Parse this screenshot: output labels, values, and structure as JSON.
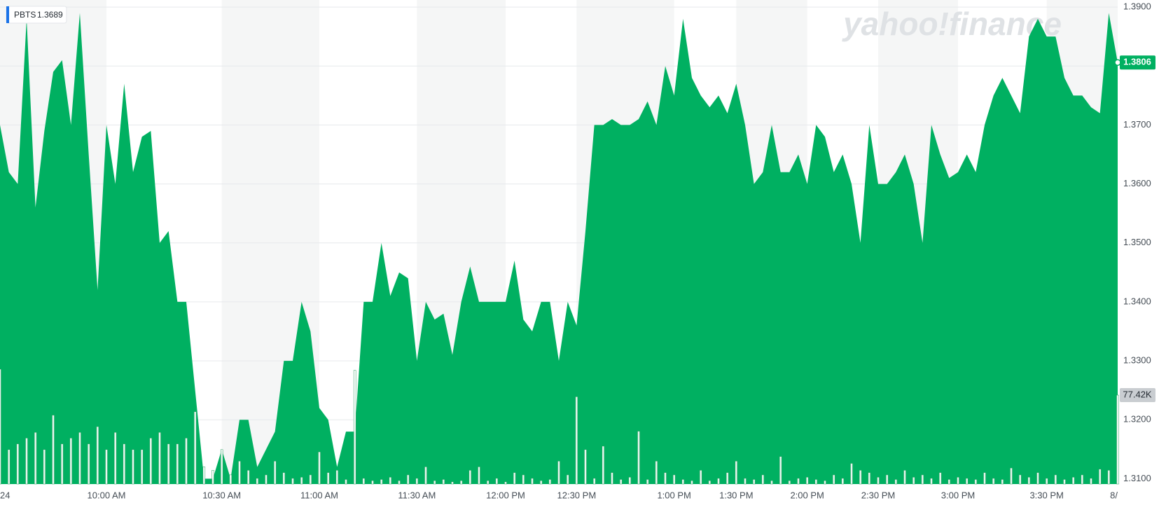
{
  "chart_data": {
    "type": "area",
    "watermark": "yahoo!finance",
    "tooltip": {
      "symbol": "PBTS",
      "value": 1.3689,
      "label": "1.3689"
    },
    "price_tag": {
      "value": 1.3806,
      "label": "1.3806"
    },
    "volume_tag": {
      "value": 77.42,
      "label": "77.42K"
    },
    "color": "#00b061",
    "volume_color": "#ffffff",
    "grid": true,
    "ylim": [
      1.3091,
      1.3912
    ],
    "yticks": [
      {
        "value": 1.31,
        "label": "1.3100"
      },
      {
        "value": 1.32,
        "label": "1.3200"
      },
      {
        "value": 1.33,
        "label": "1.3300"
      },
      {
        "value": 1.34,
        "label": "1.3400"
      },
      {
        "value": 1.35,
        "label": "1.3500"
      },
      {
        "value": 1.36,
        "label": "1.3600"
      },
      {
        "value": 1.37,
        "label": "1.3700"
      },
      {
        "value": 1.38,
        "label": "1.3800"
      },
      {
        "value": 1.39,
        "label": "1.3900"
      }
    ],
    "categories": [
      "24",
      null,
      null,
      null,
      null,
      null,
      null,
      null,
      null,
      null,
      null,
      null,
      "10:00 AM",
      null,
      null,
      null,
      null,
      null,
      null,
      null,
      null,
      null,
      null,
      null,
      null,
      "10:30 AM",
      null,
      null,
      null,
      null,
      null,
      null,
      null,
      null,
      null,
      null,
      "11:00 AM",
      null,
      null,
      null,
      null,
      null,
      null,
      null,
      null,
      null,
      null,
      "11:30 AM",
      null,
      null,
      null,
      null,
      null,
      null,
      null,
      null,
      null,
      "12:00 PM",
      null,
      null,
      null,
      null,
      null,
      null,
      null,
      "12:30 PM",
      null,
      null,
      null,
      null,
      null,
      null,
      null,
      null,
      null,
      null,
      "1:00 PM",
      null,
      null,
      null,
      null,
      null,
      null,
      "1:30 PM",
      null,
      null,
      null,
      null,
      null,
      null,
      null,
      "2:00 PM",
      null,
      null,
      null,
      null,
      null,
      null,
      null,
      "2:30 PM",
      null,
      null,
      null,
      null,
      null,
      null,
      null,
      null,
      "3:00 PM",
      null,
      null,
      null,
      null,
      null,
      null,
      null,
      null,
      null,
      "3:30 PM",
      null,
      null,
      null,
      null,
      null,
      null,
      null,
      "8/"
    ],
    "values": [
      1.37,
      1.362,
      1.36,
      1.388,
      1.356,
      1.369,
      1.379,
      1.381,
      1.37,
      1.389,
      1.365,
      1.342,
      1.37,
      1.36,
      1.377,
      1.362,
      1.368,
      1.369,
      1.35,
      1.352,
      1.34,
      1.34,
      1.325,
      1.31,
      1.31,
      1.315,
      1.31,
      1.32,
      1.32,
      1.312,
      1.315,
      1.318,
      1.33,
      1.33,
      1.34,
      1.335,
      1.322,
      1.32,
      1.312,
      1.318,
      1.318,
      1.34,
      1.34,
      1.35,
      1.341,
      1.345,
      1.344,
      1.33,
      1.34,
      1.337,
      1.338,
      1.331,
      1.34,
      1.346,
      1.34,
      1.34,
      1.34,
      1.34,
      1.347,
      1.337,
      1.335,
      1.34,
      1.34,
      1.33,
      1.34,
      1.336,
      1.352,
      1.37,
      1.37,
      1.371,
      1.37,
      1.37,
      1.371,
      1.374,
      1.37,
      1.38,
      1.375,
      1.388,
      1.378,
      1.375,
      1.373,
      1.375,
      1.372,
      1.377,
      1.37,
      1.36,
      1.362,
      1.37,
      1.362,
      1.362,
      1.365,
      1.36,
      1.37,
      1.368,
      1.362,
      1.365,
      1.36,
      1.35,
      1.37,
      1.36,
      1.36,
      1.362,
      1.365,
      1.36,
      1.35,
      1.37,
      1.365,
      1.361,
      1.362,
      1.365,
      1.362,
      1.37,
      1.375,
      1.378,
      1.375,
      1.372,
      1.385,
      1.388,
      1.385,
      1.385,
      1.378,
      1.375,
      1.375,
      1.373,
      1.372,
      1.389,
      1.3806
    ],
    "volume": [
      100,
      30,
      35,
      40,
      45,
      30,
      60,
      35,
      40,
      45,
      35,
      50,
      30,
      45,
      35,
      30,
      30,
      40,
      45,
      35,
      35,
      40,
      63,
      15,
      12,
      30,
      8,
      20,
      12,
      5,
      8,
      20,
      10,
      5,
      6,
      8,
      28,
      10,
      12,
      4,
      99,
      5,
      3,
      4,
      6,
      3,
      8,
      5,
      15,
      3,
      4,
      2,
      3,
      12,
      15,
      3,
      5,
      2,
      10,
      8,
      5,
      3,
      4,
      20,
      8,
      76,
      30,
      5,
      33,
      10,
      4,
      6,
      46,
      4,
      20,
      10,
      8,
      4,
      3,
      12,
      3,
      5,
      10,
      20,
      5,
      4,
      8,
      3,
      24,
      3,
      5,
      6,
      4,
      3,
      8,
      5,
      18,
      12,
      10,
      6,
      8,
      4,
      12,
      6,
      8,
      5,
      10,
      4,
      6,
      5,
      4,
      10,
      5,
      4,
      14,
      8,
      6,
      10,
      5,
      8,
      4,
      6,
      8,
      5,
      13,
      12,
      77.42
    ]
  }
}
